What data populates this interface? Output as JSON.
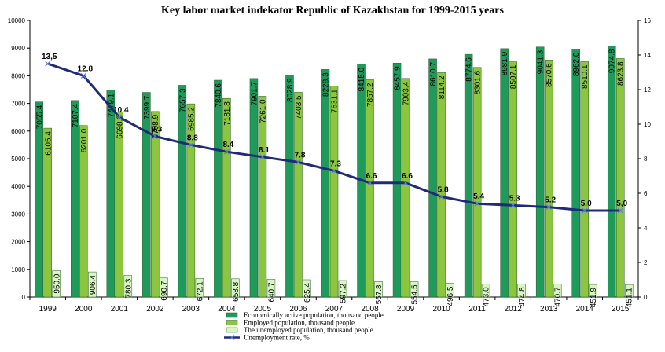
{
  "chart_data": {
    "type": "bar",
    "title": "Key labor market indekator Republic of Kazakhstan for 1999-2015 years",
    "categories": [
      "1999",
      "2000",
      "2001",
      "2002",
      "2003",
      "2004",
      "2005",
      "2006",
      "2007",
      "2008",
      "2009",
      "2010",
      "2011",
      "2012",
      "2013",
      "2014",
      "2015"
    ],
    "y_left": {
      "min": 0,
      "max": 10000,
      "step": 1000
    },
    "y_right": {
      "min": 0,
      "max": 16,
      "step": 2
    },
    "series": [
      {
        "name": "Economically active population, thousand people",
        "type": "bar",
        "axis": "left",
        "color": "#1e9a5a",
        "values": [
          7055.4,
          7107.4,
          7479.1,
          7399.7,
          7657.3,
          7840.6,
          7901.7,
          8028.9,
          8228.3,
          8415.0,
          8457.9,
          8610.7,
          8774.6,
          8981.9,
          9041.3,
          8962.0,
          9074.8
        ],
        "labels": [
          "7055.4",
          "7107.4",
          "7479.1",
          "7399.7",
          "7657.3",
          "7840.6",
          "7901.7",
          "8028.9",
          "8228.3",
          "8415.0",
          "8457.9",
          "8610.7",
          "8774.6",
          "8981.9",
          "9041.3",
          "8962.0",
          "9074.8"
        ]
      },
      {
        "name": "Employed population, thousand people",
        "type": "bar",
        "axis": "left",
        "color": "#8cc63e",
        "values": [
          6105.4,
          6201.0,
          6698.8,
          6708.9,
          6985.2,
          7181.8,
          7261.0,
          7403.5,
          7631.1,
          7857.2,
          7903.4,
          8114.2,
          8301.6,
          8507.1,
          8570.6,
          8510.1,
          8623.8
        ],
        "labels": [
          "6105.4",
          "6201.0",
          "6698.8",
          "6708.9",
          "6985.2",
          "7181.8",
          "7261.0",
          "7403.5",
          "7631.1",
          "7857.2",
          "7903.4",
          "8114.2",
          "8301.6",
          "8507.1",
          "8570.6",
          "8510.1",
          "8623.8"
        ]
      },
      {
        "name": "The unemployed population, thousand people",
        "type": "bar",
        "axis": "left",
        "color": "#d8f5c4",
        "values": [
          950.0,
          906.4,
          780.3,
          690.7,
          672.1,
          658.8,
          640.7,
          625.4,
          597.2,
          557.8,
          554.5,
          496.5,
          473.0,
          474.8,
          470.7,
          451.9,
          451.1
        ],
        "labels": [
          "950.0",
          "906.4",
          "780.3",
          "690.7",
          "672.1",
          "658.8",
          "640.7",
          "625.4",
          "597.2",
          "557.8",
          "554.5",
          "496.5",
          "473.0",
          "474.8",
          "470.7",
          "451.9",
          "451.1"
        ]
      },
      {
        "name": "Unemployment rate, %",
        "type": "line",
        "axis": "right",
        "color": "#1f2a7a",
        "values": [
          13.5,
          12.8,
          10.4,
          9.3,
          8.8,
          8.4,
          8.1,
          7.8,
          7.3,
          6.6,
          6.6,
          5.8,
          5.4,
          5.3,
          5.2,
          5.0,
          5.0
        ],
        "labels": [
          "13,5",
          "12.8",
          "10.4",
          "9.3",
          "8.8",
          "8.4",
          "8.1",
          "7.8",
          "7.3",
          "6.6",
          "6.6",
          "5.8",
          "5.4",
          "5.3",
          "5.2",
          "5.0",
          "5,0"
        ]
      }
    ],
    "legend": "bottom-center",
    "grid": false
  }
}
